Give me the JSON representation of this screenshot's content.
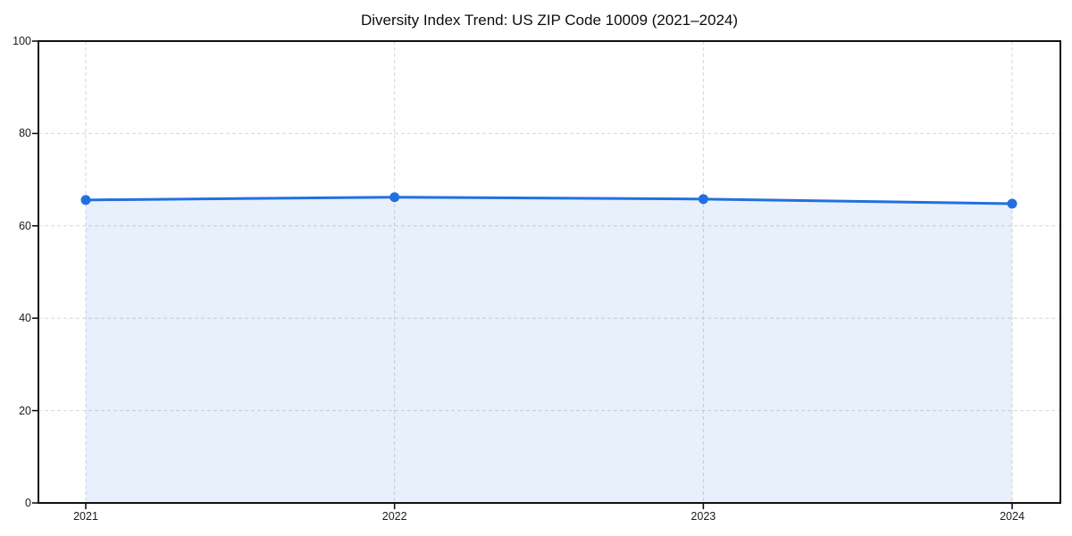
{
  "chart_data": {
    "type": "area",
    "title": "Diversity Index Trend: US ZIP Code 10009 (2021–2024)",
    "x": [
      2021,
      2022,
      2023,
      2024
    ],
    "xtick_labels": [
      "2021",
      "2022",
      "2023",
      "2024"
    ],
    "series": [
      {
        "name": "Diversity Index",
        "values": [
          65.6,
          66.2,
          65.8,
          64.8
        ]
      }
    ],
    "xlabel": "",
    "ylabel": "",
    "ylim": [
      0,
      100
    ],
    "yticks": [
      0,
      20,
      40,
      60,
      80,
      100
    ],
    "grid": "dashed",
    "legend_position": "none",
    "line_color": "#2270e0",
    "fill_color": "rgba(34,112,224,0.10)",
    "grid_color": "#d6d6d6",
    "spine_color": "#111111",
    "marker": "circle"
  }
}
